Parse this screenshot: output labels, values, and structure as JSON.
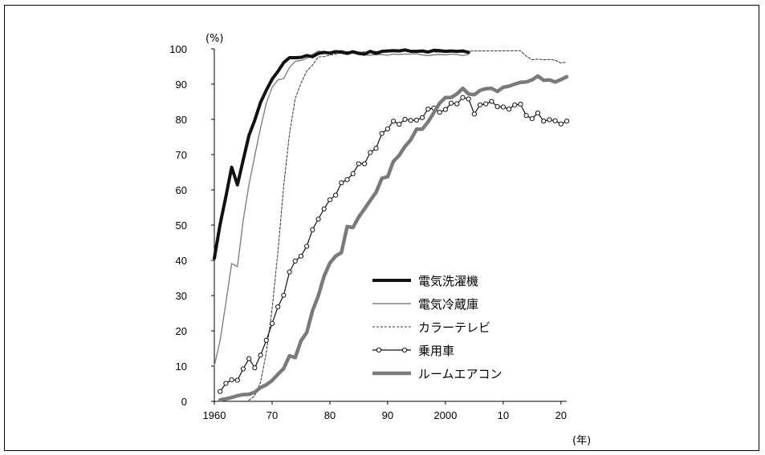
{
  "chart_data": {
    "type": "line",
    "ylabel": "(%)",
    "xunit": "(年)",
    "xlim": [
      1960,
      2021
    ],
    "ylim": [
      0,
      100
    ],
    "y_ticks": [
      0,
      10,
      20,
      30,
      40,
      50,
      60,
      70,
      80,
      90,
      100
    ],
    "x_ticks": [
      {
        "value": 1960,
        "label": "1960"
      },
      {
        "value": 1970,
        "label": "70"
      },
      {
        "value": 1980,
        "label": "80"
      },
      {
        "value": 1990,
        "label": "90"
      },
      {
        "value": 2000,
        "label": "2000"
      },
      {
        "value": 2010,
        "label": "10"
      },
      {
        "value": 2020,
        "label": "20"
      }
    ],
    "legend_position": "lower-right",
    "grid": false,
    "series": [
      {
        "name": "電気洗濯機",
        "style": "thick-black",
        "color": "#111111",
        "points": [
          [
            1960,
            40.6
          ],
          [
            1961,
            50.2
          ],
          [
            1962,
            58.1
          ],
          [
            1963,
            66.4
          ],
          [
            1964,
            61.4
          ],
          [
            1965,
            68.5
          ],
          [
            1966,
            75.5
          ],
          [
            1967,
            79.8
          ],
          [
            1968,
            84.8
          ],
          [
            1969,
            88.3
          ],
          [
            1970,
            91.4
          ],
          [
            1971,
            93.6
          ],
          [
            1972,
            96.1
          ],
          [
            1973,
            97.5
          ],
          [
            1974,
            97.5
          ],
          [
            1975,
            97.6
          ],
          [
            1976,
            98.1
          ],
          [
            1977,
            97.8
          ],
          [
            1978,
            98.7
          ],
          [
            1979,
            99.0
          ],
          [
            1980,
            98.8
          ],
          [
            1981,
            99.2
          ],
          [
            1982,
            99.1
          ],
          [
            1983,
            98.7
          ],
          [
            1984,
            99.2
          ],
          [
            1985,
            98.7
          ],
          [
            1986,
            98.5
          ],
          [
            1987,
            99.3
          ],
          [
            1988,
            98.7
          ],
          [
            1989,
            99.3
          ],
          [
            1990,
            99.4
          ],
          [
            1991,
            99.5
          ],
          [
            1992,
            99.4
          ],
          [
            1993,
            99.7
          ],
          [
            1994,
            99.3
          ],
          [
            1995,
            99.3
          ],
          [
            1996,
            99.4
          ],
          [
            1997,
            99.1
          ],
          [
            1998,
            99.6
          ],
          [
            1999,
            99.5
          ],
          [
            2000,
            99.3
          ],
          [
            2001,
            99.4
          ],
          [
            2002,
            99.3
          ],
          [
            2003,
            99.4
          ],
          [
            2004,
            99.0
          ]
        ]
      },
      {
        "name": "電気冷蔵庫",
        "style": "thin-gray",
        "color": "#808080",
        "points": [
          [
            1960,
            10.1
          ],
          [
            1961,
            17.2
          ],
          [
            1962,
            28.0
          ],
          [
            1963,
            39.1
          ],
          [
            1964,
            38.2
          ],
          [
            1965,
            51.4
          ],
          [
            1966,
            61.6
          ],
          [
            1967,
            69.7
          ],
          [
            1968,
            77.6
          ],
          [
            1969,
            84.6
          ],
          [
            1970,
            89.1
          ],
          [
            1971,
            91.2
          ],
          [
            1972,
            91.6
          ],
          [
            1973,
            94.7
          ],
          [
            1974,
            96.5
          ],
          [
            1975,
            96.7
          ],
          [
            1976,
            97.3
          ],
          [
            1977,
            98.4
          ],
          [
            1978,
            99.4
          ],
          [
            1979,
            99.1
          ],
          [
            1980,
            99.1
          ],
          [
            1981,
            99.2
          ],
          [
            1982,
            99.5
          ],
          [
            1983,
            99.1
          ],
          [
            1984,
            98.8
          ],
          [
            1985,
            98.4
          ],
          [
            1986,
            98.3
          ],
          [
            1987,
            98.2
          ],
          [
            1988,
            98.4
          ],
          [
            1989,
            98.4
          ],
          [
            1990,
            98.2
          ],
          [
            1991,
            98.5
          ],
          [
            1992,
            98.4
          ],
          [
            1993,
            98.5
          ],
          [
            1994,
            98.5
          ],
          [
            1995,
            98.6
          ],
          [
            1996,
            98.3
          ],
          [
            1997,
            98.1
          ],
          [
            1998,
            98.3
          ],
          [
            1999,
            98.4
          ],
          [
            2000,
            98.3
          ],
          [
            2001,
            98.5
          ],
          [
            2002,
            98.4
          ],
          [
            2003,
            98.1
          ],
          [
            2004,
            98.4
          ]
        ]
      },
      {
        "name": "カラーテレビ",
        "style": "dashed",
        "color": "#333333",
        "points": [
          [
            1966,
            0.3
          ],
          [
            1967,
            1.6
          ],
          [
            1968,
            5.4
          ],
          [
            1969,
            13.9
          ],
          [
            1970,
            26.3
          ],
          [
            1971,
            42.3
          ],
          [
            1972,
            61.1
          ],
          [
            1973,
            75.8
          ],
          [
            1974,
            85.9
          ],
          [
            1975,
            90.3
          ],
          [
            1976,
            93.7
          ],
          [
            1977,
            95.4
          ],
          [
            1978,
            97.7
          ],
          [
            1979,
            97.8
          ],
          [
            1980,
            98.2
          ],
          [
            1981,
            98.5
          ],
          [
            1982,
            98.9
          ],
          [
            1983,
            99.2
          ],
          [
            1984,
            99.2
          ],
          [
            1985,
            99.1
          ],
          [
            1990,
            99.4
          ],
          [
            1995,
            99.2
          ],
          [
            2000,
            99.0
          ],
          [
            2005,
            99.4
          ],
          [
            2010,
            99.4
          ],
          [
            2013,
            99.5
          ],
          [
            2014,
            97.9
          ],
          [
            2015,
            96.9
          ],
          [
            2016,
            97.1
          ],
          [
            2017,
            96.9
          ],
          [
            2018,
            97.0
          ],
          [
            2019,
            96.8
          ],
          [
            2020,
            96.0
          ],
          [
            2021,
            96.2
          ]
        ]
      },
      {
        "name": "乗用車",
        "style": "line-with-circles",
        "color": "#111111",
        "points": [
          [
            1961,
            2.8
          ],
          [
            1962,
            5.1
          ],
          [
            1963,
            6.1
          ],
          [
            1964,
            6.0
          ],
          [
            1965,
            9.2
          ],
          [
            1966,
            12.1
          ],
          [
            1967,
            9.5
          ],
          [
            1968,
            13.1
          ],
          [
            1969,
            17.3
          ],
          [
            1970,
            22.1
          ],
          [
            1971,
            26.8
          ],
          [
            1972,
            30.1
          ],
          [
            1973,
            36.7
          ],
          [
            1974,
            39.8
          ],
          [
            1975,
            41.2
          ],
          [
            1976,
            44.0
          ],
          [
            1977,
            48.7
          ],
          [
            1978,
            51.7
          ],
          [
            1979,
            54.6
          ],
          [
            1980,
            57.2
          ],
          [
            1981,
            58.5
          ],
          [
            1982,
            62.0
          ],
          [
            1983,
            62.9
          ],
          [
            1984,
            64.6
          ],
          [
            1985,
            67.4
          ],
          [
            1986,
            67.4
          ],
          [
            1987,
            70.6
          ],
          [
            1988,
            71.8
          ],
          [
            1989,
            76.0
          ],
          [
            1990,
            77.3
          ],
          [
            1991,
            79.5
          ],
          [
            1992,
            78.6
          ],
          [
            1993,
            80.0
          ],
          [
            1994,
            79.7
          ],
          [
            1995,
            79.8
          ],
          [
            1996,
            80.5
          ],
          [
            1997,
            82.9
          ],
          [
            1998,
            83.2
          ],
          [
            1999,
            82.0
          ],
          [
            2000,
            82.8
          ],
          [
            2001,
            84.6
          ],
          [
            2002,
            84.4
          ],
          [
            2003,
            86.2
          ],
          [
            2004,
            85.8
          ],
          [
            2005,
            81.5
          ],
          [
            2006,
            84.1
          ],
          [
            2007,
            84.4
          ],
          [
            2008,
            85.1
          ],
          [
            2009,
            83.6
          ],
          [
            2010,
            83.5
          ],
          [
            2011,
            82.9
          ],
          [
            2012,
            84.1
          ],
          [
            2013,
            84.3
          ],
          [
            2014,
            81.1
          ],
          [
            2015,
            80.2
          ],
          [
            2016,
            81.8
          ],
          [
            2017,
            79.5
          ],
          [
            2018,
            79.9
          ],
          [
            2019,
            79.6
          ],
          [
            2020,
            78.7
          ],
          [
            2021,
            79.5
          ]
        ]
      },
      {
        "name": "ルームエアコン",
        "style": "thick-gray",
        "color": "#7a7a7a",
        "points": [
          [
            1961,
            0.4
          ],
          [
            1962,
            0.7
          ],
          [
            1963,
            1.1
          ],
          [
            1964,
            1.6
          ],
          [
            1965,
            1.9
          ],
          [
            1966,
            2.0
          ],
          [
            1967,
            2.6
          ],
          [
            1968,
            3.9
          ],
          [
            1969,
            4.7
          ],
          [
            1970,
            5.9
          ],
          [
            1971,
            7.7
          ],
          [
            1972,
            9.3
          ],
          [
            1973,
            12.9
          ],
          [
            1974,
            12.4
          ],
          [
            1975,
            17.2
          ],
          [
            1976,
            19.5
          ],
          [
            1977,
            25.7
          ],
          [
            1978,
            29.9
          ],
          [
            1979,
            35.5
          ],
          [
            1980,
            39.2
          ],
          [
            1981,
            41.2
          ],
          [
            1982,
            42.2
          ],
          [
            1983,
            49.6
          ],
          [
            1984,
            49.3
          ],
          [
            1985,
            52.3
          ],
          [
            1986,
            54.6
          ],
          [
            1987,
            57.0
          ],
          [
            1988,
            59.3
          ],
          [
            1989,
            63.3
          ],
          [
            1990,
            63.7
          ],
          [
            1991,
            68.1
          ],
          [
            1992,
            69.8
          ],
          [
            1993,
            72.3
          ],
          [
            1994,
            74.2
          ],
          [
            1995,
            77.2
          ],
          [
            1996,
            77.2
          ],
          [
            1997,
            79.3
          ],
          [
            1998,
            81.9
          ],
          [
            1999,
            84.6
          ],
          [
            2000,
            86.2
          ],
          [
            2001,
            86.2
          ],
          [
            2002,
            87.2
          ],
          [
            2003,
            88.8
          ],
          [
            2004,
            87.2
          ],
          [
            2005,
            87.0
          ],
          [
            2006,
            88.2
          ],
          [
            2007,
            88.7
          ],
          [
            2008,
            88.8
          ],
          [
            2009,
            87.9
          ],
          [
            2010,
            89.1
          ],
          [
            2011,
            89.4
          ],
          [
            2012,
            90.0
          ],
          [
            2013,
            90.5
          ],
          [
            2014,
            90.6
          ],
          [
            2015,
            91.2
          ],
          [
            2016,
            92.3
          ],
          [
            2017,
            91.1
          ],
          [
            2018,
            91.2
          ],
          [
            2019,
            90.6
          ],
          [
            2020,
            91.3
          ],
          [
            2021,
            92.1
          ]
        ]
      }
    ]
  }
}
